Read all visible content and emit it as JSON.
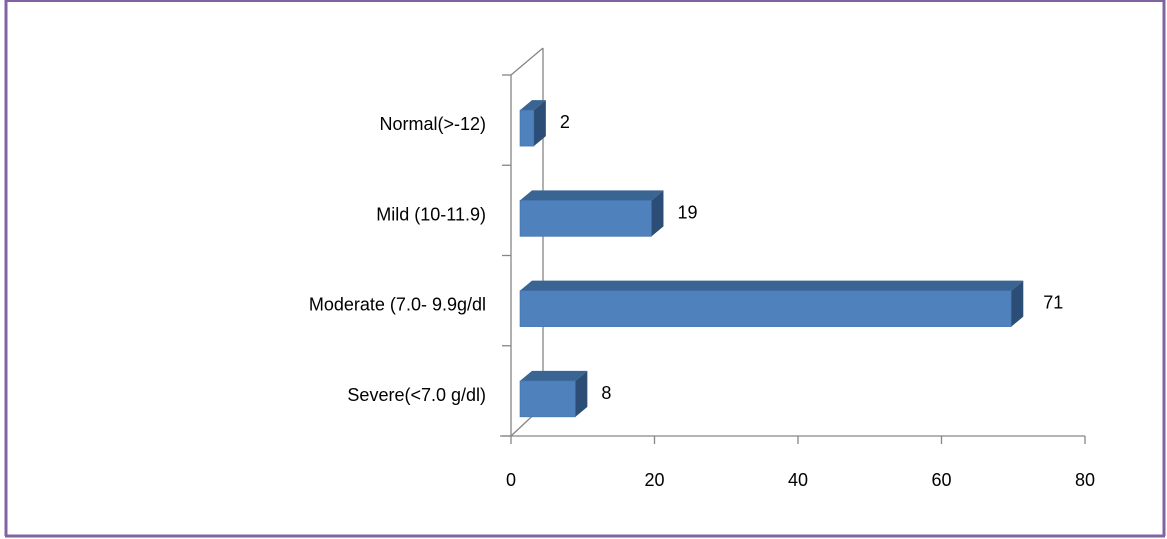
{
  "colors": {
    "frame": "#8064a2",
    "bar_front": "#4f81bd",
    "bar_top": "#3a6593",
    "bar_side": "#2c4d75",
    "axis": "#868686"
  },
  "chart_data": {
    "type": "bar",
    "orientation": "horizontal",
    "three_d": true,
    "categories": [
      "Normal(>-12)",
      "Mild (10-11.9)",
      "Moderate (7.0- 9.9g/dl",
      "Severe(<7.0 g/dl)"
    ],
    "values": [
      2,
      19,
      71,
      8
    ],
    "data_labels": [
      "2",
      "19",
      "71",
      "8"
    ],
    "xlim": [
      0,
      80
    ],
    "x_ticks": [
      0,
      20,
      40,
      60,
      80
    ],
    "x_tick_labels": [
      "0",
      "20",
      "40",
      "60",
      "80"
    ],
    "grid": false,
    "legend": "none"
  }
}
